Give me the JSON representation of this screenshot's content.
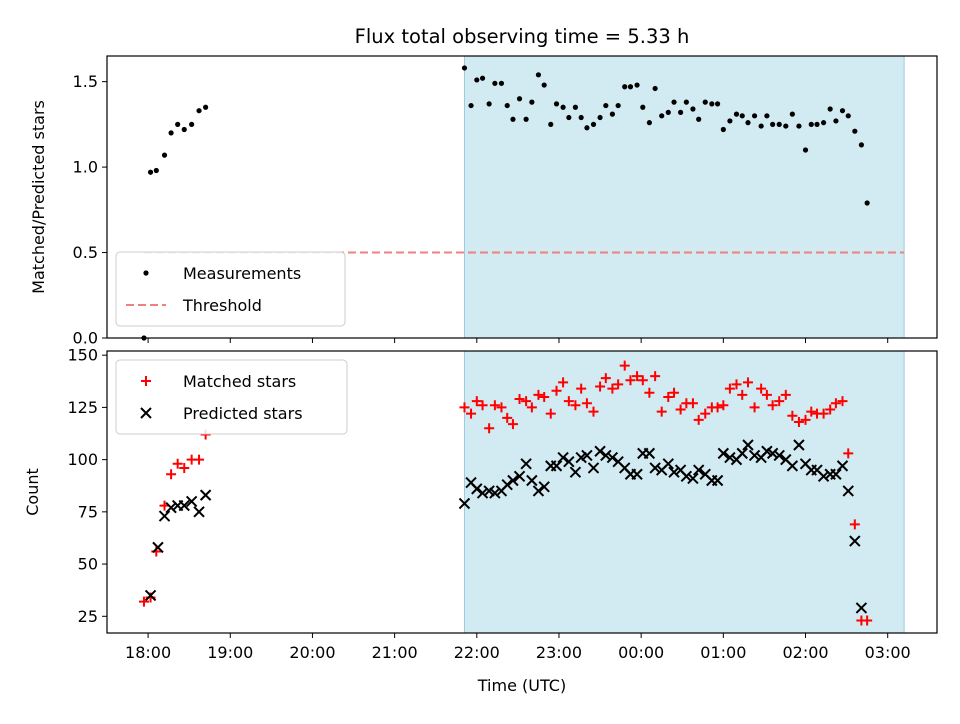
{
  "chart_data": {
    "title": "Flux total observing time = 5.33 h",
    "xlabel": "Time (UTC)",
    "xlim": [
      17.5,
      27.6
    ],
    "x_ticks": [
      18,
      19,
      20,
      21,
      22,
      23,
      24,
      25,
      26,
      27
    ],
    "x_tick_labels": [
      "18:00",
      "19:00",
      "20:00",
      "21:00",
      "22:00",
      "23:00",
      "00:00",
      "01:00",
      "02:00",
      "03:00"
    ],
    "shaded_region": {
      "x_start": 21.85,
      "x_end": 27.2,
      "color": "#add8e6"
    },
    "panels": [
      {
        "type": "scatter",
        "ylabel": "Matched/Predicted stars",
        "ylim": [
          0,
          1.65
        ],
        "y_ticks": [
          0.0,
          0.5,
          1.0,
          1.5
        ],
        "y_tick_labels": [
          "0.0",
          "0.5",
          "1.0",
          "1.5"
        ],
        "legend_position": "lower-left",
        "threshold": {
          "name": "Threshold",
          "y": 0.5,
          "x_start": 17.95,
          "x_end": 27.2,
          "color": "#f08080"
        },
        "series": [
          {
            "name": "Measurements",
            "color": "#000000",
            "marker": "dot",
            "points": [
              [
                17.95,
                0.0
              ],
              [
                18.03,
                0.97
              ],
              [
                18.1,
                0.98
              ],
              [
                18.2,
                1.07
              ],
              [
                18.28,
                1.2
              ],
              [
                18.36,
                1.25
              ],
              [
                18.44,
                1.22
              ],
              [
                18.53,
                1.25
              ],
              [
                18.62,
                1.33
              ],
              [
                18.7,
                1.35
              ],
              [
                21.85,
                1.58
              ],
              [
                21.93,
                1.36
              ],
              [
                22.0,
                1.51
              ],
              [
                22.07,
                1.52
              ],
              [
                22.15,
                1.37
              ],
              [
                22.22,
                1.49
              ],
              [
                22.3,
                1.49
              ],
              [
                22.37,
                1.36
              ],
              [
                22.44,
                1.28
              ],
              [
                22.52,
                1.4
              ],
              [
                22.6,
                1.28
              ],
              [
                22.67,
                1.38
              ],
              [
                22.75,
                1.54
              ],
              [
                22.82,
                1.48
              ],
              [
                22.9,
                1.25
              ],
              [
                22.97,
                1.37
              ],
              [
                23.05,
                1.35
              ],
              [
                23.12,
                1.29
              ],
              [
                23.2,
                1.35
              ],
              [
                23.27,
                1.29
              ],
              [
                23.34,
                1.23
              ],
              [
                23.42,
                1.25
              ],
              [
                23.5,
                1.29
              ],
              [
                23.57,
                1.36
              ],
              [
                23.65,
                1.31
              ],
              [
                23.72,
                1.36
              ],
              [
                23.8,
                1.47
              ],
              [
                23.87,
                1.47
              ],
              [
                23.95,
                1.48
              ],
              [
                24.02,
                1.35
              ],
              [
                24.1,
                1.26
              ],
              [
                24.17,
                1.46
              ],
              [
                24.25,
                1.3
              ],
              [
                24.33,
                1.32
              ],
              [
                24.4,
                1.38
              ],
              [
                24.48,
                1.32
              ],
              [
                24.55,
                1.38
              ],
              [
                24.63,
                1.34
              ],
              [
                24.7,
                1.28
              ],
              [
                24.78,
                1.38
              ],
              [
                24.86,
                1.37
              ],
              [
                24.93,
                1.37
              ],
              [
                25.0,
                1.22
              ],
              [
                25.08,
                1.27
              ],
              [
                25.16,
                1.31
              ],
              [
                25.23,
                1.3
              ],
              [
                25.3,
                1.26
              ],
              [
                25.38,
                1.3
              ],
              [
                25.46,
                1.24
              ],
              [
                25.53,
                1.3
              ],
              [
                25.6,
                1.25
              ],
              [
                25.68,
                1.25
              ],
              [
                25.76,
                1.24
              ],
              [
                25.84,
                1.31
              ],
              [
                25.92,
                1.24
              ],
              [
                26.0,
                1.1
              ],
              [
                26.07,
                1.25
              ],
              [
                26.14,
                1.25
              ],
              [
                26.22,
                1.26
              ],
              [
                26.3,
                1.34
              ],
              [
                26.37,
                1.27
              ],
              [
                26.45,
                1.33
              ],
              [
                26.52,
                1.3
              ],
              [
                26.6,
                1.21
              ],
              [
                26.68,
                1.13
              ],
              [
                26.75,
                0.79
              ]
            ]
          }
        ]
      },
      {
        "type": "scatter",
        "ylabel": "Count",
        "ylim": [
          17,
          152
        ],
        "y_ticks": [
          25,
          50,
          75,
          100,
          125,
          150
        ],
        "y_tick_labels": [
          "25",
          "50",
          "75",
          "100",
          "125",
          "150"
        ],
        "legend_position": "upper-left",
        "series": [
          {
            "name": "Matched stars",
            "color": "#ff0000",
            "marker": "plus",
            "points": [
              [
                17.95,
                32
              ],
              [
                18.03,
                34
              ],
              [
                18.1,
                56
              ],
              [
                18.2,
                78
              ],
              [
                18.28,
                93
              ],
              [
                18.36,
                98
              ],
              [
                18.44,
                96
              ],
              [
                18.53,
                100
              ],
              [
                18.62,
                100
              ],
              [
                18.7,
                112
              ],
              [
                21.85,
                125
              ],
              [
                21.93,
                122
              ],
              [
                22.0,
                128
              ],
              [
                22.07,
                126
              ],
              [
                22.15,
                115
              ],
              [
                22.22,
                126
              ],
              [
                22.3,
                125
              ],
              [
                22.37,
                120
              ],
              [
                22.44,
                117
              ],
              [
                22.52,
                129
              ],
              [
                22.6,
                128
              ],
              [
                22.67,
                125
              ],
              [
                22.75,
                131
              ],
              [
                22.82,
                130
              ],
              [
                22.9,
                122
              ],
              [
                22.97,
                133
              ],
              [
                23.05,
                137
              ],
              [
                23.12,
                128
              ],
              [
                23.2,
                126
              ],
              [
                23.27,
                134
              ],
              [
                23.34,
                127
              ],
              [
                23.42,
                123
              ],
              [
                23.5,
                135
              ],
              [
                23.57,
                139
              ],
              [
                23.65,
                134
              ],
              [
                23.72,
                136
              ],
              [
                23.8,
                145
              ],
              [
                23.87,
                138
              ],
              [
                23.95,
                140
              ],
              [
                24.02,
                138
              ],
              [
                24.1,
                132
              ],
              [
                24.17,
                140
              ],
              [
                24.25,
                123
              ],
              [
                24.33,
                130
              ],
              [
                24.4,
                132
              ],
              [
                24.48,
                124
              ],
              [
                24.55,
                127
              ],
              [
                24.63,
                127
              ],
              [
                24.7,
                119
              ],
              [
                24.78,
                122
              ],
              [
                24.86,
                125
              ],
              [
                24.93,
                125
              ],
              [
                25.0,
                126
              ],
              [
                25.08,
                134
              ],
              [
                25.16,
                136
              ],
              [
                25.23,
                131
              ],
              [
                25.3,
                137
              ],
              [
                25.38,
                125
              ],
              [
                25.46,
                134
              ],
              [
                25.53,
                131
              ],
              [
                25.6,
                126
              ],
              [
                25.68,
                128
              ],
              [
                25.76,
                131
              ],
              [
                25.84,
                121
              ],
              [
                25.92,
                118
              ],
              [
                26.0,
                119
              ],
              [
                26.07,
                123
              ],
              [
                26.14,
                122
              ],
              [
                26.22,
                122
              ],
              [
                26.3,
                124
              ],
              [
                26.37,
                127
              ],
              [
                26.45,
                128
              ],
              [
                26.52,
                103
              ],
              [
                26.6,
                69
              ],
              [
                26.68,
                23
              ],
              [
                26.75,
                23
              ]
            ]
          },
          {
            "name": "Predicted stars",
            "color": "#000000",
            "marker": "x",
            "points": [
              [
                18.03,
                35
              ],
              [
                18.12,
                58
              ],
              [
                18.2,
                73
              ],
              [
                18.28,
                77
              ],
              [
                18.36,
                78
              ],
              [
                18.44,
                78
              ],
              [
                18.53,
                80
              ],
              [
                18.62,
                75
              ],
              [
                18.7,
                83
              ],
              [
                21.85,
                79
              ],
              [
                21.93,
                89
              ],
              [
                22.0,
                86
              ],
              [
                22.07,
                84
              ],
              [
                22.15,
                85
              ],
              [
                22.22,
                84
              ],
              [
                22.3,
                85
              ],
              [
                22.37,
                88
              ],
              [
                22.44,
                90
              ],
              [
                22.52,
                92
              ],
              [
                22.6,
                98
              ],
              [
                22.67,
                90
              ],
              [
                22.75,
                85
              ],
              [
                22.82,
                87
              ],
              [
                22.9,
                97
              ],
              [
                22.97,
                97
              ],
              [
                23.05,
                101
              ],
              [
                23.12,
                99
              ],
              [
                23.2,
                94
              ],
              [
                23.27,
                101
              ],
              [
                23.34,
                102
              ],
              [
                23.42,
                96
              ],
              [
                23.5,
                104
              ],
              [
                23.57,
                102
              ],
              [
                23.65,
                101
              ],
              [
                23.72,
                99
              ],
              [
                23.8,
                96
              ],
              [
                23.87,
                93
              ],
              [
                23.95,
                93
              ],
              [
                24.02,
                103
              ],
              [
                24.1,
                103
              ],
              [
                24.17,
                96
              ],
              [
                24.25,
                95
              ],
              [
                24.33,
                98
              ],
              [
                24.4,
                94
              ],
              [
                24.48,
                95
              ],
              [
                24.55,
                92
              ],
              [
                24.63,
                91
              ],
              [
                24.7,
                95
              ],
              [
                24.78,
                93
              ],
              [
                24.86,
                90
              ],
              [
                24.93,
                90
              ],
              [
                25.0,
                103
              ],
              [
                25.08,
                101
              ],
              [
                25.16,
                100
              ],
              [
                25.23,
                103
              ],
              [
                25.3,
                107
              ],
              [
                25.38,
                102
              ],
              [
                25.46,
                101
              ],
              [
                25.53,
                104
              ],
              [
                25.6,
                103
              ],
              [
                25.68,
                102
              ],
              [
                25.76,
                100
              ],
              [
                25.84,
                97
              ],
              [
                25.92,
                107
              ],
              [
                26.0,
                98
              ],
              [
                26.07,
                95
              ],
              [
                26.14,
                95
              ],
              [
                26.22,
                92
              ],
              [
                26.3,
                93
              ],
              [
                26.37,
                93
              ],
              [
                26.45,
                97
              ],
              [
                26.52,
                85
              ],
              [
                26.6,
                61
              ],
              [
                26.68,
                29
              ]
            ]
          }
        ]
      }
    ]
  }
}
